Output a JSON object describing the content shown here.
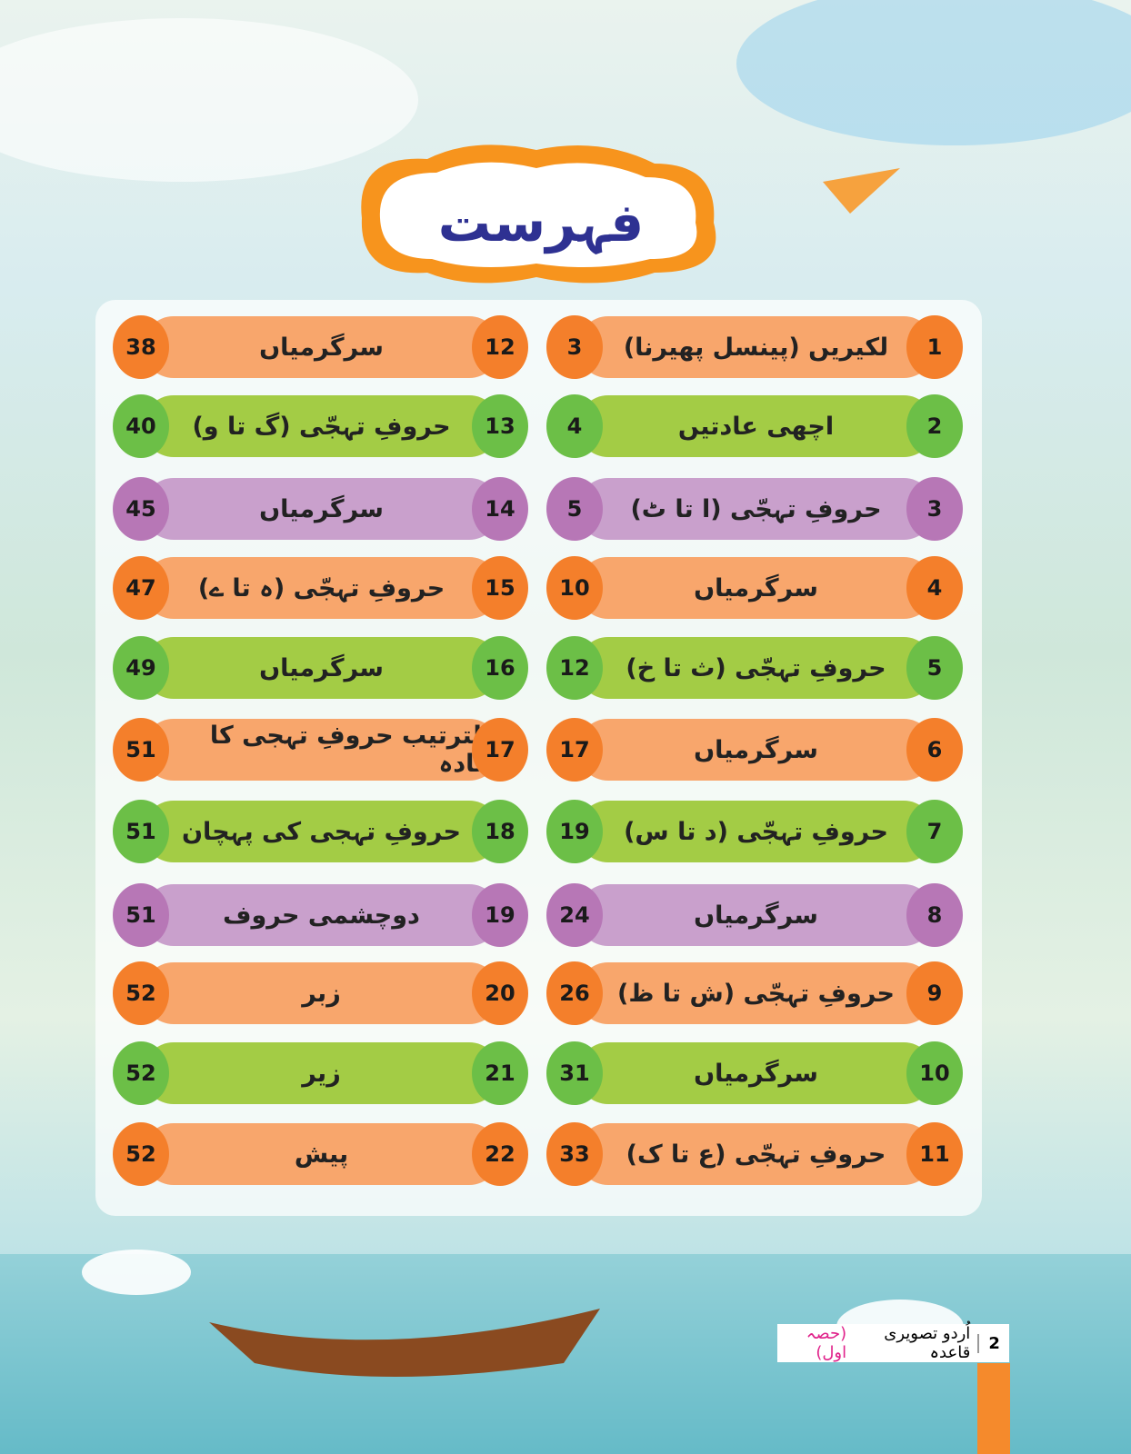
{
  "header": {
    "title": "فہرست"
  },
  "entries": [
    {
      "number": 1,
      "title": "لکیریں (پینسل پھیرنا)",
      "page": 3
    },
    {
      "number": 2,
      "title": "اچھی عادتیں",
      "page": 4
    },
    {
      "number": 3,
      "title": "حروفِ تہجّی (ا تا ٹ)",
      "page": 5
    },
    {
      "number": 4,
      "title": "سرگرمیاں",
      "page": 10
    },
    {
      "number": 5,
      "title": "حروفِ تہجّی (ث تا خ)",
      "page": 12
    },
    {
      "number": 6,
      "title": "سرگرمیاں",
      "page": 17
    },
    {
      "number": 7,
      "title": "حروفِ تہجّی (د تا س)",
      "page": 19
    },
    {
      "number": 8,
      "title": "سرگرمیاں",
      "page": 24
    },
    {
      "number": 9,
      "title": "حروفِ تہجّی (ش تا ظ)",
      "page": 26
    },
    {
      "number": 10,
      "title": "سرگرمیاں",
      "page": 31
    },
    {
      "number": 11,
      "title": "حروفِ تہجّی (ع تا ک)",
      "page": 33
    },
    {
      "number": 12,
      "title": "سرگرمیاں",
      "page": 38
    },
    {
      "number": 13,
      "title": "حروفِ تہجّی (گ تا و)",
      "page": 40
    },
    {
      "number": 14,
      "title": "سرگرمیاں",
      "page": 45
    },
    {
      "number": 15,
      "title": "حروفِ تہجّی (ہ تا ے)",
      "page": 47
    },
    {
      "number": 16,
      "title": "سرگرمیاں",
      "page": 49
    },
    {
      "number": 17,
      "title": "بالترتیب حروفِ تہجی کا اعادہ",
      "page": 51
    },
    {
      "number": 18,
      "title": "حروفِ تہجی کی پہچان",
      "page": 51
    },
    {
      "number": 19,
      "title": "دوچشمی حروف",
      "page": 51
    },
    {
      "number": 20,
      "title": "زبر",
      "page": 52
    },
    {
      "number": 21,
      "title": "زیر",
      "page": 52
    },
    {
      "number": 22,
      "title": "پیش",
      "page": 52
    }
  ],
  "footer": {
    "page_number": 2,
    "book": "اُردو تصویری قاعدہ",
    "part": "(حصہ اول)"
  }
}
